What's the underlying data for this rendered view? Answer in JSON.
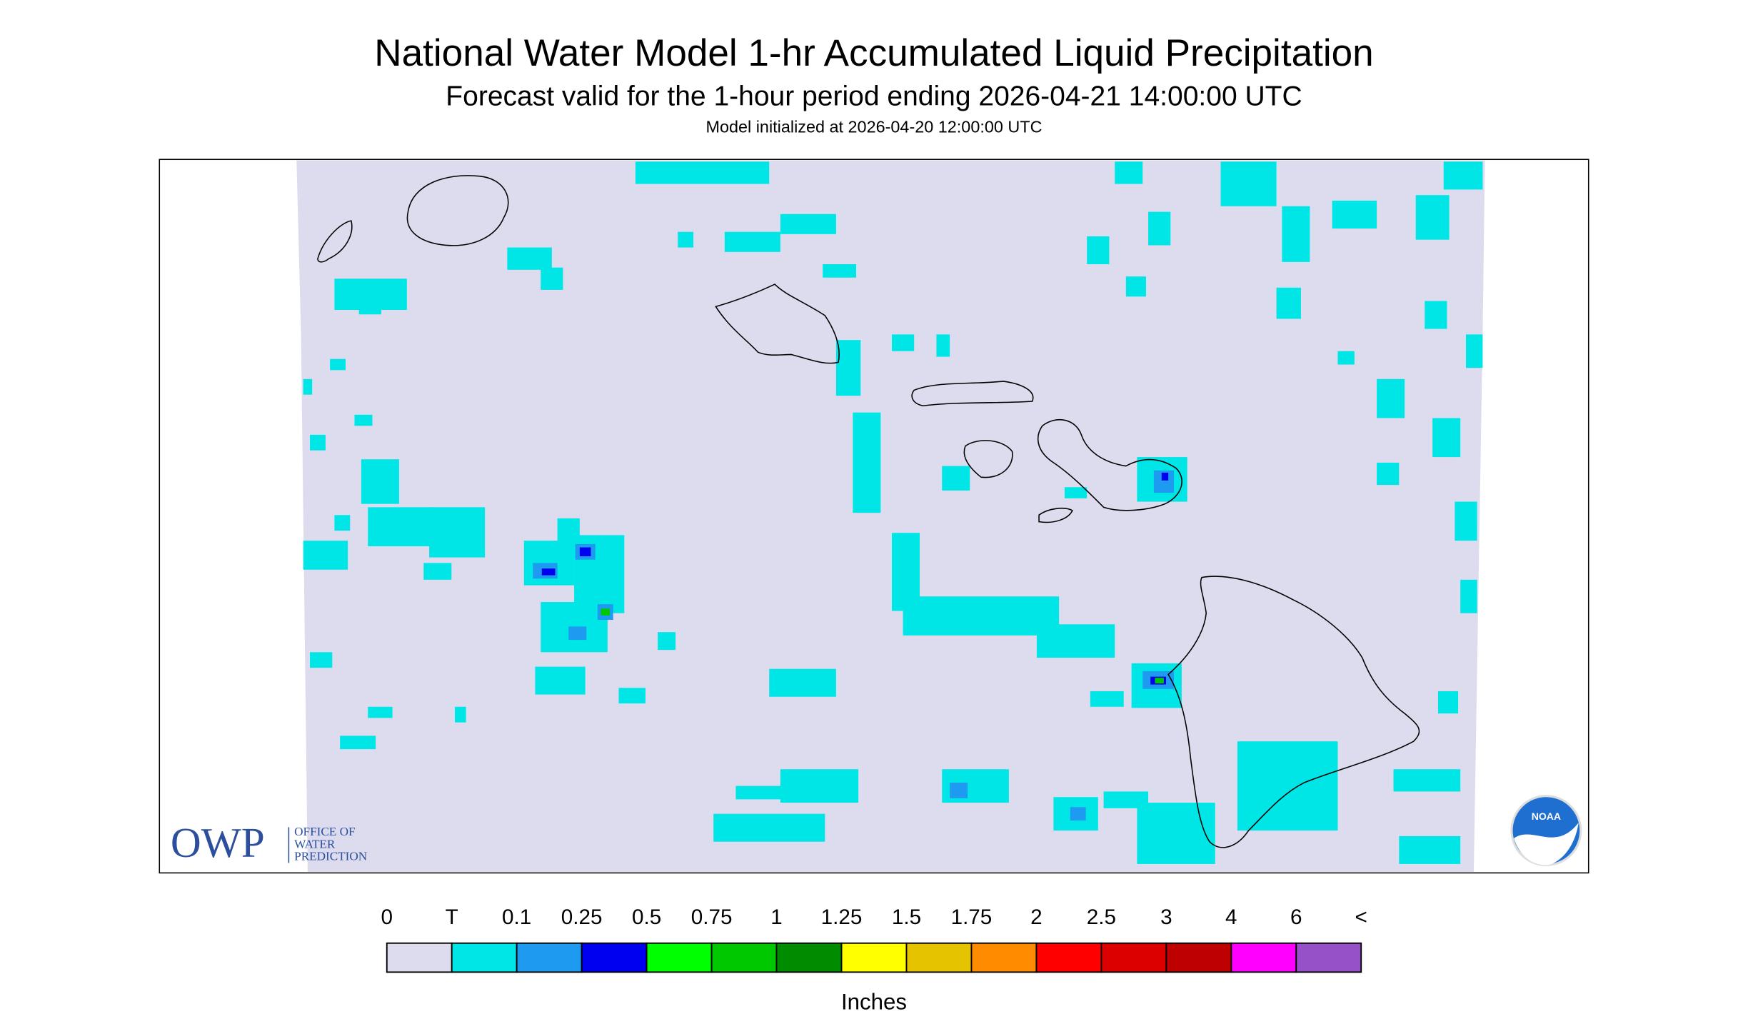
{
  "header": {
    "title": "National Water Model 1-hr Accumulated Liquid Precipitation",
    "subtitle": "Forecast valid for the 1-hour period ending 2026-04-21 14:00:00 UTC",
    "note": "Model initialized at 2026-04-20 12:00:00 UTC"
  },
  "logos": {
    "owp": "OWP",
    "owp_lines": [
      "OFFICE OF",
      "WATER",
      "PREDICTION"
    ],
    "noaa": "NOAA"
  },
  "legend": {
    "labels": [
      "0",
      "T",
      "0.1",
      "0.25",
      "0.5",
      "0.75",
      "1",
      "1.25",
      "1.5",
      "1.75",
      "2",
      "2.5",
      "3",
      "4",
      "6",
      "<"
    ],
    "colors": [
      "#dcdcee",
      "#00e6e6",
      "#1e9bf0",
      "#0000f0",
      "#00ff00",
      "#00c800",
      "#008c00",
      "#ffff00",
      "#e6c300",
      "#ff8c00",
      "#ff0000",
      "#dc0000",
      "#be0000",
      "#ff00ff",
      "#9650c8"
    ],
    "units": "Inches"
  }
}
